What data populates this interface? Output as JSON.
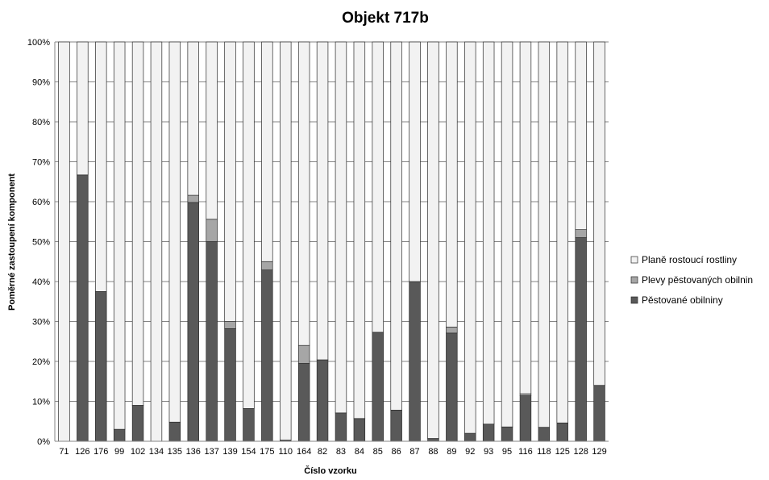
{
  "chart_data": {
    "type": "bar",
    "stacked": true,
    "title": "Objekt 717b",
    "xlabel": "Číslo vzorku",
    "ylabel": "Poměrné zastoupení komponent",
    "ylim": [
      0,
      100
    ],
    "yticks": [
      "0%",
      "10%",
      "20%",
      "30%",
      "40%",
      "50%",
      "60%",
      "70%",
      "80%",
      "90%",
      "100%"
    ],
    "grid": true,
    "legend_position": "right",
    "categories": [
      "71",
      "126",
      "176",
      "99",
      "102",
      "134",
      "135",
      "136",
      "137",
      "139",
      "154",
      "175",
      "110",
      "164",
      "82",
      "83",
      "84",
      "85",
      "86",
      "87",
      "88",
      "89",
      "92",
      "93",
      "95",
      "116",
      "118",
      "125",
      "128",
      "129"
    ],
    "series": [
      {
        "name": "Pěstované obilniny",
        "color": "#595959",
        "values": [
          0,
          66.7,
          37.5,
          3,
          9,
          0,
          4.8,
          59.8,
          50,
          28.2,
          8.2,
          42.9,
          0.3,
          19.5,
          20.4,
          7.1,
          5.7,
          27.3,
          7.8,
          40,
          0.7,
          27.1,
          2,
          4.3,
          3.6,
          11.4,
          3.5,
          4.6,
          51,
          14
        ]
      },
      {
        "name": "Plevy pěstovaných obilnin",
        "color": "#a6a6a6",
        "values": [
          0,
          0,
          0,
          0,
          0,
          0,
          0,
          1.8,
          5.6,
          1.8,
          0,
          2.1,
          0,
          4.5,
          0,
          0,
          0,
          0,
          0,
          0,
          0,
          1.5,
          0,
          0,
          0,
          0.5,
          0,
          0,
          2,
          0
        ]
      },
      {
        "name": "Planě rostoucí rostliny",
        "color": "#f2f2f2",
        "values": [
          100,
          33.3,
          62.5,
          97,
          91,
          100,
          95.2,
          38.4,
          44.4,
          70,
          91.8,
          55,
          99.7,
          76,
          79.6,
          92.9,
          94.3,
          72.7,
          92.2,
          60,
          99.3,
          71.4,
          98,
          95.7,
          96.4,
          88.1,
          96.5,
          95.4,
          47,
          86
        ]
      }
    ]
  }
}
